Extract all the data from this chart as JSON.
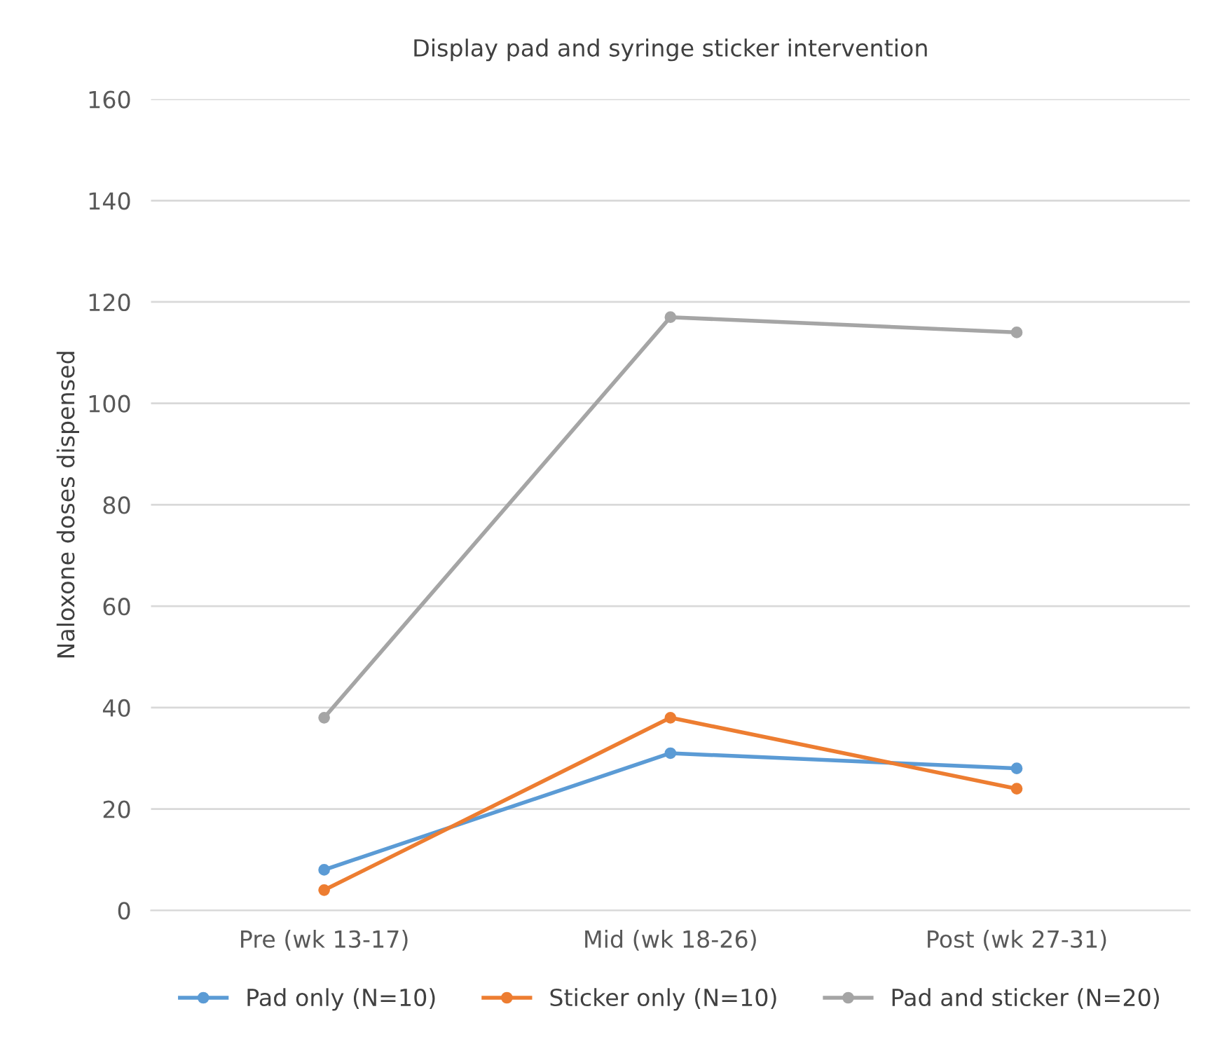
{
  "chart_data": {
    "type": "line",
    "title": "Display pad and syringe sticker intervention",
    "ylabel": "Naloxone doses dispensed",
    "categories": [
      "Pre (wk 13-17)",
      "Mid (wk 18-26)",
      "Post (wk 27-31)"
    ],
    "series": [
      {
        "name": "Pad only (N=10)",
        "color": "#5b9bd5",
        "values": [
          8,
          31,
          28
        ]
      },
      {
        "name": "Sticker only (N=10)",
        "color": "#ed7d31",
        "values": [
          4,
          38,
          24
        ]
      },
      {
        "name": "Pad and sticker (N=20)",
        "color": "#a5a5a5",
        "values": [
          38,
          117,
          114
        ]
      }
    ],
    "ylim": [
      0,
      160
    ],
    "yticks": [
      0,
      20,
      40,
      60,
      80,
      100,
      120,
      140,
      160
    ],
    "grid": "y",
    "legend": "bottom",
    "marker": "circle",
    "line_style": "solid"
  }
}
